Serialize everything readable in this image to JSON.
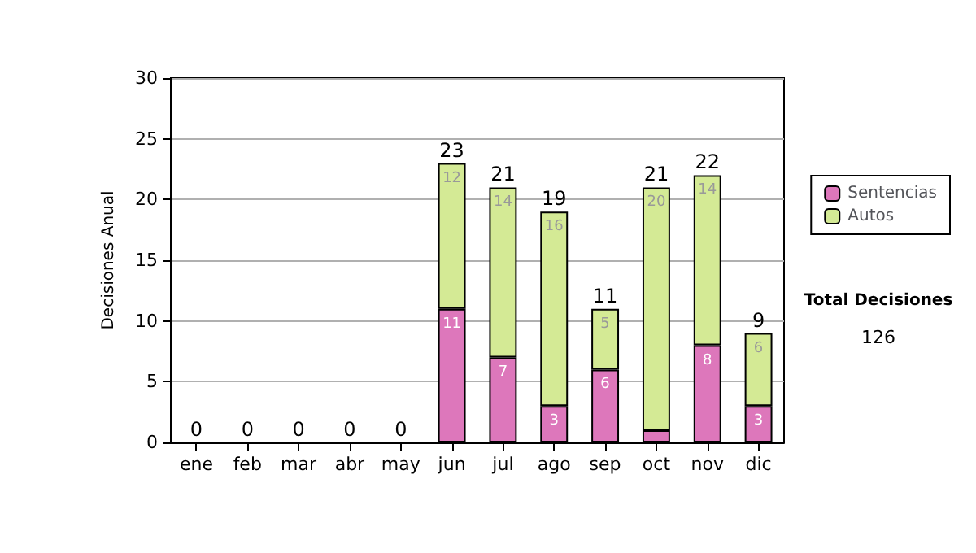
{
  "chart_data": {
    "type": "bar",
    "stacked": true,
    "ylabel": "Decisiones Anual",
    "categories": [
      "ene",
      "feb",
      "mar",
      "abr",
      "may",
      "jun",
      "jul",
      "ago",
      "sep",
      "oct",
      "nov",
      "dic"
    ],
    "series": [
      {
        "name": "Sentencias",
        "color": "#dd77bb",
        "values": [
          0,
          0,
          0,
          0,
          0,
          11,
          7,
          3,
          6,
          1,
          8,
          3
        ],
        "value_labels": [
          null,
          null,
          null,
          null,
          null,
          "11",
          "7",
          "3",
          "6",
          null,
          "8",
          "3"
        ]
      },
      {
        "name": "Autos",
        "color": "#d4ea95",
        "values": [
          0,
          0,
          0,
          0,
          0,
          12,
          14,
          16,
          5,
          20,
          14,
          6
        ],
        "value_labels": [
          null,
          null,
          null,
          null,
          null,
          "12",
          "14",
          "16",
          "5",
          "20",
          "14",
          "6"
        ]
      }
    ],
    "totals": [
      "0",
      "0",
      "0",
      "0",
      "0",
      "23",
      "21",
      "19",
      "11",
      "21",
      "22",
      "9"
    ],
    "ylim": [
      0,
      30
    ],
    "yticks": [
      0,
      5,
      10,
      15,
      20,
      25,
      30
    ],
    "grid": "y",
    "legend": "right",
    "annotations": [
      "Total Decisiones",
      "126"
    ]
  }
}
